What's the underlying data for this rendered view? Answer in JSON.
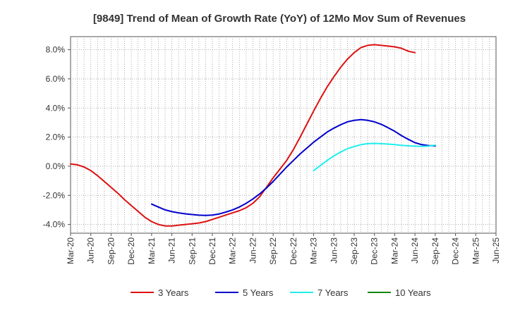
{
  "chart_data": {
    "type": "line",
    "title": "[9849]  Trend of Mean of Growth Rate (YoY) of 12Mo Mov Sum of Revenues",
    "xlabel": "",
    "ylabel": "",
    "x_tick_labels": [
      "Mar-20",
      "Jun-20",
      "Sep-20",
      "Dec-20",
      "Mar-21",
      "Jun-21",
      "Sep-21",
      "Dec-21",
      "Mar-22",
      "Jun-22",
      "Sep-22",
      "Dec-22",
      "Mar-23",
      "Jun-23",
      "Sep-23",
      "Dec-23",
      "Mar-24",
      "Jun-24",
      "Sep-24",
      "Dec-24",
      "Mar-25",
      "Jun-25"
    ],
    "y_tick_values": [
      -4.0,
      -2.0,
      0.0,
      2.0,
      4.0,
      6.0,
      8.0
    ],
    "y_tick_labels": [
      "-4.0%",
      "-2.0%",
      "0.0%",
      "2.0%",
      "4.0%",
      "6.0%",
      "8.0%"
    ],
    "ylim": [
      -4.6,
      8.9
    ],
    "grid": true,
    "legend_position": "bottom",
    "series": [
      {
        "name": "3 Years",
        "color": "#dd1111",
        "start_index": 0,
        "values": [
          0.15,
          0.1,
          -0.05,
          -0.3,
          -0.65,
          -1.05,
          -1.45,
          -1.85,
          -2.3,
          -2.7,
          -3.1,
          -3.5,
          -3.8,
          -4.0,
          -4.1,
          -4.1,
          -4.05,
          -4.0,
          -3.95,
          -3.9,
          -3.8,
          -3.65,
          -3.5,
          -3.35,
          -3.2,
          -3.05,
          -2.85,
          -2.55,
          -2.1,
          -1.45,
          -0.8,
          -0.2,
          0.4,
          1.15,
          2.0,
          2.9,
          3.8,
          4.65,
          5.45,
          6.15,
          6.8,
          7.35,
          7.8,
          8.15,
          8.3,
          8.35,
          8.3,
          8.25,
          8.2,
          8.1,
          7.9,
          7.8
        ]
      },
      {
        "name": "5 Years",
        "color": "#0000cc",
        "start_index": 12,
        "values": [
          -2.6,
          -2.8,
          -3.0,
          -3.12,
          -3.2,
          -3.27,
          -3.32,
          -3.36,
          -3.38,
          -3.35,
          -3.28,
          -3.15,
          -3.0,
          -2.8,
          -2.55,
          -2.25,
          -1.9,
          -1.5,
          -1.05,
          -0.55,
          -0.05,
          0.4,
          0.85,
          1.25,
          1.65,
          2.0,
          2.35,
          2.62,
          2.85,
          3.05,
          3.15,
          3.2,
          3.15,
          3.05,
          2.88,
          2.65,
          2.4,
          2.1,
          1.85,
          1.62,
          1.48,
          1.42,
          1.4
        ]
      },
      {
        "name": "7 Years",
        "color": "#22eeee",
        "start_index": 36,
        "values": [
          -0.3,
          0.05,
          0.4,
          0.72,
          0.98,
          1.2,
          1.35,
          1.48,
          1.55,
          1.57,
          1.55,
          1.52,
          1.48,
          1.44,
          1.4,
          1.38,
          1.36,
          1.38,
          1.45
        ]
      },
      {
        "name": "10 Years",
        "color": "#118811",
        "start_index": 0,
        "values": []
      }
    ]
  }
}
